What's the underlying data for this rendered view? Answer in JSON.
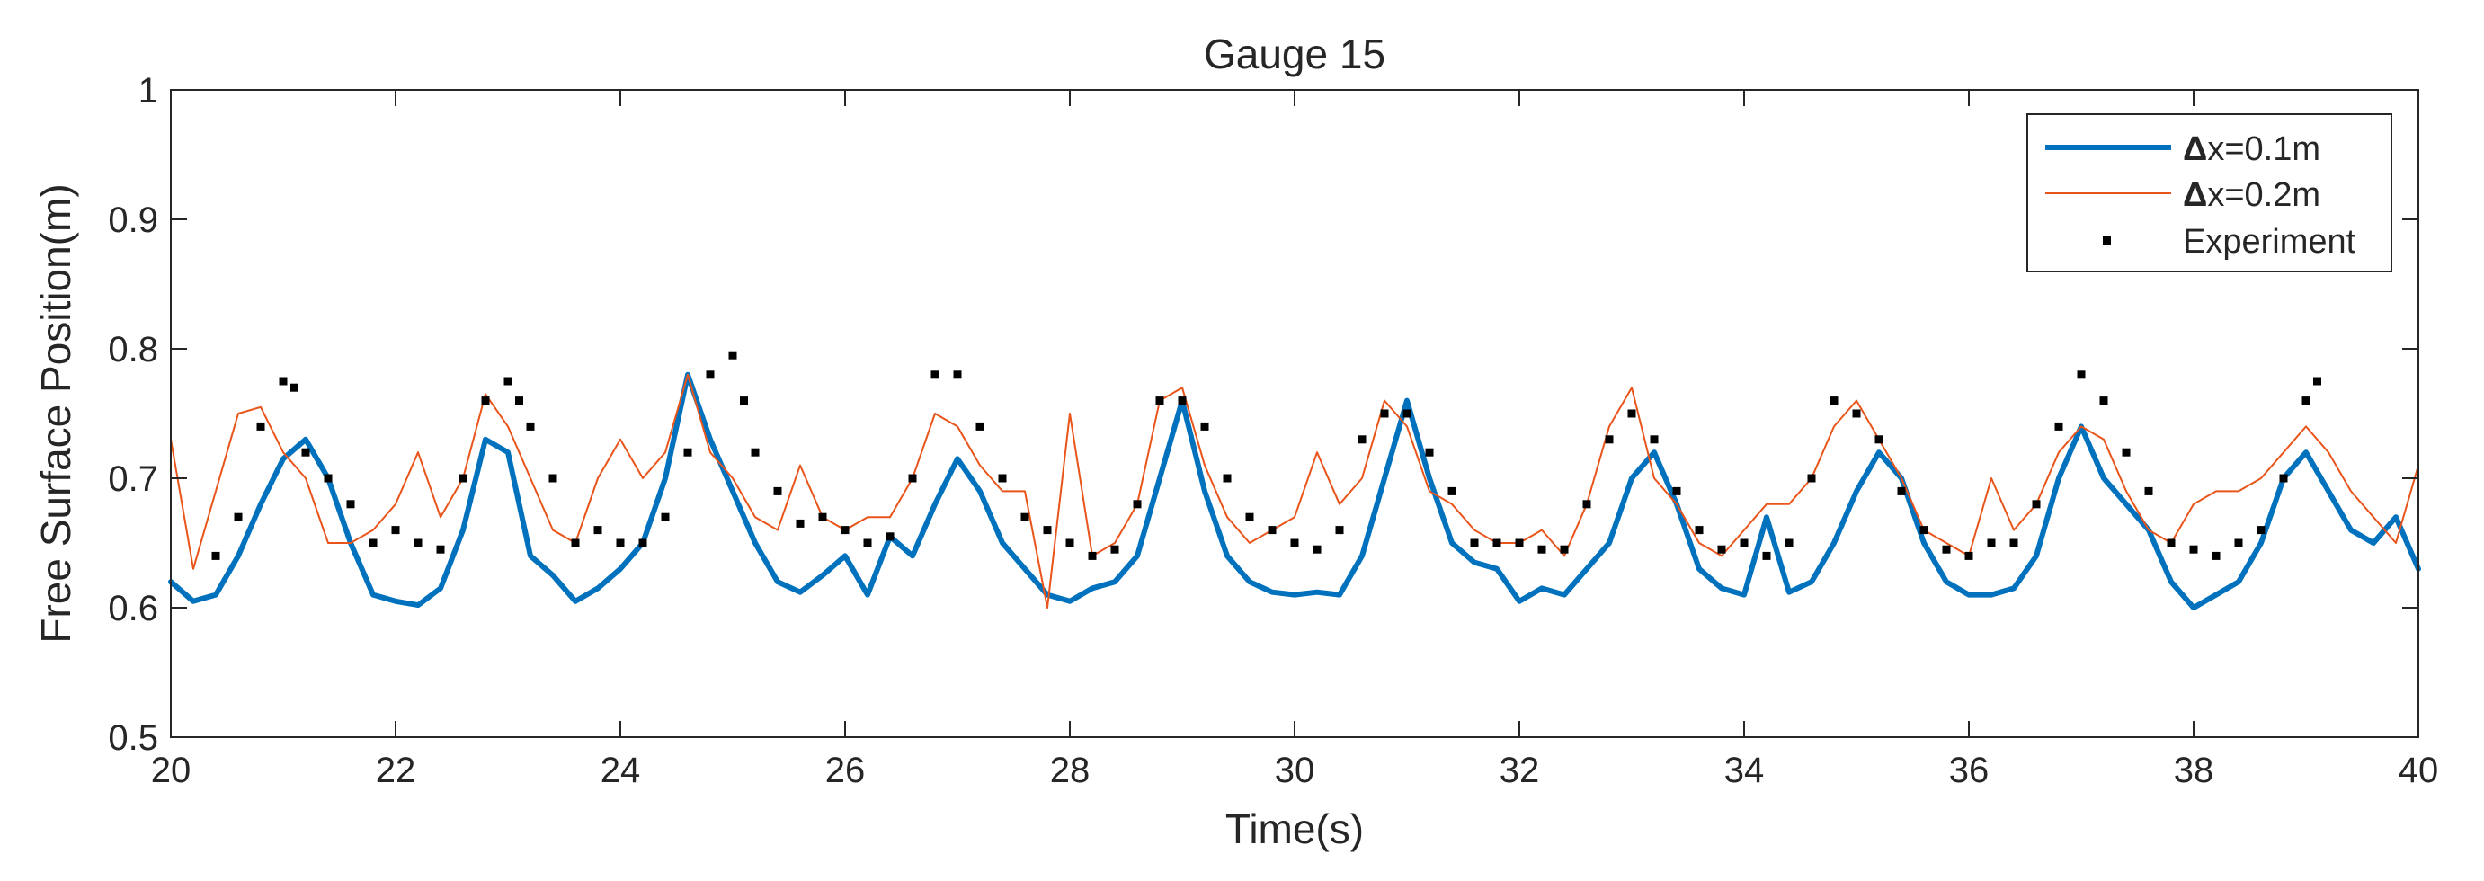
{
  "chart_data": {
    "type": "line",
    "title": "Gauge 15",
    "xlabel": "Time(s)",
    "ylabel": "Free Surface Position(m)",
    "xlim": [
      20,
      40
    ],
    "ylim": [
      0.5,
      1
    ],
    "xticks": [
      20,
      22,
      24,
      26,
      28,
      30,
      32,
      34,
      36,
      38,
      40
    ],
    "yticks": [
      0.5,
      0.6,
      0.7,
      0.8,
      0.9,
      1
    ],
    "xtick_labels": [
      "20",
      "22",
      "24",
      "26",
      "28",
      "30",
      "32",
      "34",
      "36",
      "38",
      "40"
    ],
    "ytick_labels": [
      "0.5",
      "0.6",
      "0.7",
      "0.8",
      "0.9",
      "1"
    ],
    "legend_position": "top-right",
    "series": [
      {
        "name": "Δx=0.1m",
        "legend_symbol": "Δ",
        "legend_text": "x=0.1m",
        "style": "line",
        "color": "#0072BD",
        "x": [
          20.0,
          20.2,
          20.4,
          20.6,
          20.8,
          21.0,
          21.2,
          21.4,
          21.6,
          21.8,
          22.0,
          22.2,
          22.4,
          22.6,
          22.8,
          23.0,
          23.2,
          23.4,
          23.6,
          23.8,
          24.0,
          24.2,
          24.4,
          24.6,
          24.8,
          25.0,
          25.2,
          25.4,
          25.6,
          25.8,
          26.0,
          26.2,
          26.4,
          26.6,
          26.8,
          27.0,
          27.2,
          27.4,
          27.6,
          27.8,
          28.0,
          28.2,
          28.4,
          28.6,
          28.8,
          29.0,
          29.2,
          29.4,
          29.6,
          29.8,
          30.0,
          30.2,
          30.4,
          30.6,
          30.8,
          31.0,
          31.2,
          31.4,
          31.6,
          31.8,
          32.0,
          32.2,
          32.4,
          32.6,
          32.8,
          33.0,
          33.2,
          33.4,
          33.6,
          33.8,
          34.0,
          34.2,
          34.4,
          34.6,
          34.8,
          35.0,
          35.2,
          35.4,
          35.6,
          35.8,
          36.0,
          36.2,
          36.4,
          36.6,
          36.8,
          37.0,
          37.2,
          37.4,
          37.6,
          37.8,
          38.0,
          38.2,
          38.4,
          38.6,
          38.8,
          39.0,
          39.2,
          39.4,
          39.6,
          39.8,
          40.0
        ],
        "y": [
          0.62,
          0.605,
          0.61,
          0.64,
          0.68,
          0.715,
          0.73,
          0.7,
          0.65,
          0.61,
          0.605,
          0.602,
          0.615,
          0.66,
          0.73,
          0.72,
          0.64,
          0.625,
          0.605,
          0.615,
          0.63,
          0.65,
          0.7,
          0.78,
          0.73,
          0.69,
          0.65,
          0.62,
          0.612,
          0.625,
          0.64,
          0.61,
          0.655,
          0.64,
          0.68,
          0.715,
          0.69,
          0.65,
          0.63,
          0.61,
          0.605,
          0.615,
          0.62,
          0.64,
          0.7,
          0.76,
          0.69,
          0.64,
          0.62,
          0.612,
          0.61,
          0.612,
          0.61,
          0.64,
          0.7,
          0.76,
          0.7,
          0.65,
          0.635,
          0.63,
          0.605,
          0.615,
          0.61,
          0.63,
          0.65,
          0.7,
          0.72,
          0.68,
          0.63,
          0.615,
          0.61,
          0.67,
          0.612,
          0.62,
          0.65,
          0.69,
          0.72,
          0.7,
          0.65,
          0.62,
          0.61,
          0.61,
          0.615,
          0.64,
          0.7,
          0.74,
          0.7,
          0.68,
          0.66,
          0.62,
          0.6,
          0.61,
          0.62,
          0.65,
          0.7,
          0.72,
          0.69,
          0.66,
          0.65,
          0.67,
          0.63
        ]
      },
      {
        "name": "Δx=0.2m",
        "legend_symbol": "Δ",
        "legend_text": "x=0.2m",
        "style": "line",
        "color": "#E9541A",
        "x": [
          20.0,
          20.2,
          20.4,
          20.6,
          20.8,
          21.0,
          21.2,
          21.4,
          21.6,
          21.8,
          22.0,
          22.2,
          22.4,
          22.6,
          22.8,
          23.0,
          23.2,
          23.4,
          23.6,
          23.8,
          24.0,
          24.2,
          24.4,
          24.6,
          24.8,
          25.0,
          25.2,
          25.4,
          25.6,
          25.8,
          26.0,
          26.2,
          26.4,
          26.6,
          26.8,
          27.0,
          27.2,
          27.4,
          27.6,
          27.8,
          28.0,
          28.2,
          28.4,
          28.6,
          28.8,
          29.0,
          29.2,
          29.4,
          29.6,
          29.8,
          30.0,
          30.2,
          30.4,
          30.6,
          30.8,
          31.0,
          31.2,
          31.4,
          31.6,
          31.8,
          32.0,
          32.2,
          32.4,
          32.6,
          32.8,
          33.0,
          33.2,
          33.4,
          33.6,
          33.8,
          34.0,
          34.2,
          34.4,
          34.6,
          34.8,
          35.0,
          35.2,
          35.4,
          35.6,
          35.8,
          36.0,
          36.2,
          36.4,
          36.6,
          36.8,
          37.0,
          37.2,
          37.4,
          37.6,
          37.8,
          38.0,
          38.2,
          38.4,
          38.6,
          38.8,
          39.0,
          39.2,
          39.4,
          39.6,
          39.8,
          40.0
        ],
        "y": [
          0.73,
          0.63,
          0.69,
          0.75,
          0.755,
          0.72,
          0.7,
          0.65,
          0.65,
          0.66,
          0.68,
          0.72,
          0.67,
          0.7,
          0.765,
          0.74,
          0.7,
          0.66,
          0.65,
          0.7,
          0.73,
          0.7,
          0.72,
          0.78,
          0.72,
          0.7,
          0.67,
          0.66,
          0.71,
          0.67,
          0.66,
          0.67,
          0.67,
          0.7,
          0.75,
          0.74,
          0.71,
          0.69,
          0.69,
          0.6,
          0.75,
          0.64,
          0.65,
          0.68,
          0.76,
          0.77,
          0.71,
          0.67,
          0.65,
          0.66,
          0.67,
          0.72,
          0.68,
          0.7,
          0.76,
          0.74,
          0.69,
          0.68,
          0.66,
          0.65,
          0.65,
          0.66,
          0.64,
          0.68,
          0.74,
          0.77,
          0.7,
          0.68,
          0.65,
          0.64,
          0.66,
          0.68,
          0.68,
          0.7,
          0.74,
          0.76,
          0.73,
          0.7,
          0.66,
          0.65,
          0.64,
          0.7,
          0.66,
          0.68,
          0.72,
          0.74,
          0.73,
          0.69,
          0.66,
          0.65,
          0.68,
          0.69,
          0.69,
          0.7,
          0.72,
          0.74,
          0.72,
          0.69,
          0.67,
          0.65,
          0.71
        ]
      },
      {
        "name": "Experiment",
        "legend_symbol": "",
        "legend_text": "Experiment",
        "style": "markers",
        "color": "#000000",
        "x": [
          20.4,
          20.6,
          20.8,
          21.0,
          21.1,
          21.2,
          21.4,
          21.6,
          21.8,
          22.0,
          22.2,
          22.4,
          22.6,
          22.8,
          23.0,
          23.1,
          23.2,
          23.4,
          23.6,
          23.8,
          24.0,
          24.2,
          24.4,
          24.6,
          24.8,
          25.0,
          25.1,
          25.2,
          25.4,
          25.6,
          25.8,
          26.0,
          26.2,
          26.4,
          26.6,
          26.8,
          27.0,
          27.2,
          27.4,
          27.6,
          27.8,
          28.0,
          28.2,
          28.4,
          28.6,
          28.8,
          29.0,
          29.2,
          29.4,
          29.6,
          29.8,
          30.0,
          30.2,
          30.4,
          30.6,
          30.8,
          31.0,
          31.2,
          31.4,
          31.6,
          31.8,
          32.0,
          32.2,
          32.4,
          32.6,
          32.8,
          33.0,
          33.2,
          33.4,
          33.6,
          33.8,
          34.0,
          34.2,
          34.4,
          34.6,
          34.8,
          35.0,
          35.2,
          35.4,
          35.6,
          35.8,
          36.0,
          36.2,
          36.4,
          36.6,
          36.8,
          37.0,
          37.2,
          37.4,
          37.6,
          37.8,
          38.0,
          38.2,
          38.4,
          38.6,
          38.8,
          39.0,
          39.1
        ],
        "y": [
          0.64,
          0.67,
          0.74,
          0.775,
          0.77,
          0.72,
          0.7,
          0.68,
          0.65,
          0.66,
          0.65,
          0.645,
          0.7,
          0.76,
          0.775,
          0.76,
          0.74,
          0.7,
          0.65,
          0.66,
          0.65,
          0.65,
          0.67,
          0.72,
          0.78,
          0.795,
          0.76,
          0.72,
          0.69,
          0.665,
          0.67,
          0.66,
          0.65,
          0.655,
          0.7,
          0.78,
          0.78,
          0.74,
          0.7,
          0.67,
          0.66,
          0.65,
          0.64,
          0.645,
          0.68,
          0.76,
          0.76,
          0.74,
          0.7,
          0.67,
          0.66,
          0.65,
          0.645,
          0.66,
          0.73,
          0.75,
          0.75,
          0.72,
          0.69,
          0.65,
          0.65,
          0.65,
          0.645,
          0.645,
          0.68,
          0.73,
          0.75,
          0.73,
          0.69,
          0.66,
          0.645,
          0.65,
          0.64,
          0.65,
          0.7,
          0.76,
          0.75,
          0.73,
          0.69,
          0.66,
          0.645,
          0.64,
          0.65,
          0.65,
          0.68,
          0.74,
          0.78,
          0.76,
          0.72,
          0.69,
          0.65,
          0.645,
          0.64,
          0.65,
          0.66,
          0.7,
          0.76,
          0.775
        ]
      }
    ]
  }
}
